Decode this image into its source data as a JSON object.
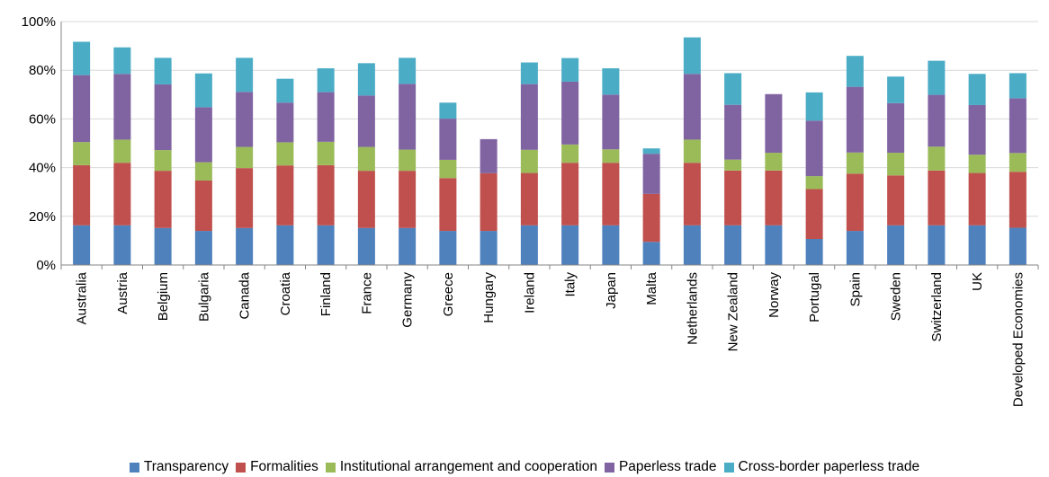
{
  "chart_data": {
    "type": "bar",
    "stacked": true,
    "categories": [
      "Australia",
      "Austria",
      "Belgium",
      "Bulgaria",
      "Canada",
      "Croatia",
      "Finland",
      "France",
      "Germany",
      "Greece",
      "Hungary",
      "Ireland",
      "Italy",
      "Japan",
      "Malta",
      "Netherlands",
      "New Zealand",
      "Norway",
      "Portugal",
      "Spain",
      "Sweden",
      "Switzerland",
      "UK",
      "Developed Economies"
    ],
    "series": [
      {
        "name": "Transparency",
        "color": "#4F81BD",
        "values": [
          16.3,
          16.3,
          15.2,
          14.0,
          15.2,
          16.3,
          16.3,
          15.2,
          15.2,
          14.0,
          14.0,
          16.3,
          16.3,
          16.3,
          9.5,
          16.3,
          16.3,
          16.3,
          10.7,
          14.0,
          16.3,
          16.3,
          16.3,
          15.3
        ]
      },
      {
        "name": "Formalities",
        "color": "#C0504D",
        "values": [
          24.7,
          25.7,
          23.5,
          20.7,
          24.6,
          24.6,
          24.7,
          23.5,
          23.5,
          21.7,
          23.7,
          21.5,
          25.7,
          25.7,
          19.7,
          25.7,
          22.5,
          22.5,
          20.5,
          23.5,
          20.5,
          22.5,
          21.5,
          23.0
        ]
      },
      {
        "name": "Institutional arrangement and cooperation",
        "color": "#9BBB59",
        "values": [
          9.5,
          9.5,
          8.5,
          7.5,
          8.7,
          9.5,
          9.6,
          9.8,
          8.7,
          7.5,
          0,
          9.5,
          7.5,
          5.5,
          0,
          9.5,
          4.5,
          7.3,
          5.3,
          8.7,
          9.3,
          9.8,
          7.5,
          7.7
        ]
      },
      {
        "name": "Paperless trade",
        "color": "#8064A2",
        "values": [
          27.5,
          27.0,
          27.0,
          22.6,
          22.6,
          16.3,
          20.4,
          21.1,
          27.0,
          16.9,
          14.0,
          27.0,
          25.8,
          22.5,
          16.5,
          27.0,
          22.5,
          24.1,
          22.8,
          27.0,
          20.4,
          21.3,
          20.4,
          22.5
        ]
      },
      {
        "name": "Cross-border paperless trade",
        "color": "#4BACC6",
        "values": [
          13.7,
          10.9,
          10.9,
          13.9,
          14.0,
          9.8,
          9.8,
          13.3,
          10.7,
          6.6,
          0,
          8.9,
          9.7,
          10.8,
          2.2,
          15.0,
          13.0,
          0,
          11.6,
          12.7,
          10.9,
          14.0,
          12.8,
          10.3
        ]
      }
    ],
    "ylim": [
      0,
      100
    ],
    "yticks": [
      0,
      20,
      40,
      60,
      80,
      100
    ],
    "ytick_labels": [
      "0%",
      "20%",
      "40%",
      "60%",
      "80%",
      "100%"
    ],
    "grid": true,
    "legend_position": "bottom"
  }
}
